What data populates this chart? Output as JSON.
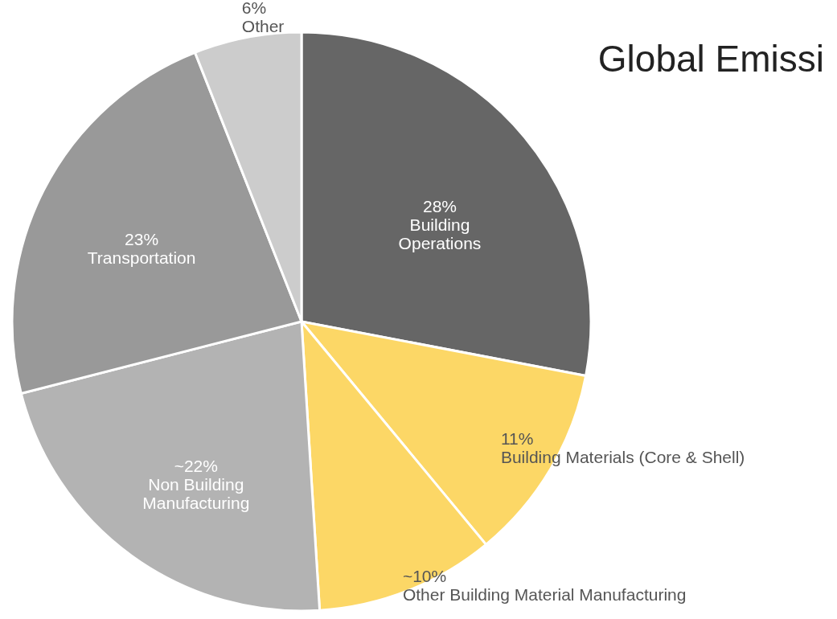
{
  "chart_data": {
    "type": "pie",
    "title": "Global Emissi",
    "categories": [
      "Building\nOperations",
      "Building Materials (Core & Shell)",
      "Other Building Material Manufacturing",
      "Non Building\nManufacturing",
      "Transportation",
      "Other"
    ],
    "values": [
      28,
      11,
      10,
      22,
      23,
      6
    ],
    "value_labels": [
      "28%",
      "11%",
      "~10%",
      "~22%",
      "23%",
      "6%"
    ],
    "colors": [
      "#666666",
      "#fcd766",
      "#fcd766",
      "#b3b3b3",
      "#999999",
      "#cccccc"
    ],
    "legend": false
  }
}
